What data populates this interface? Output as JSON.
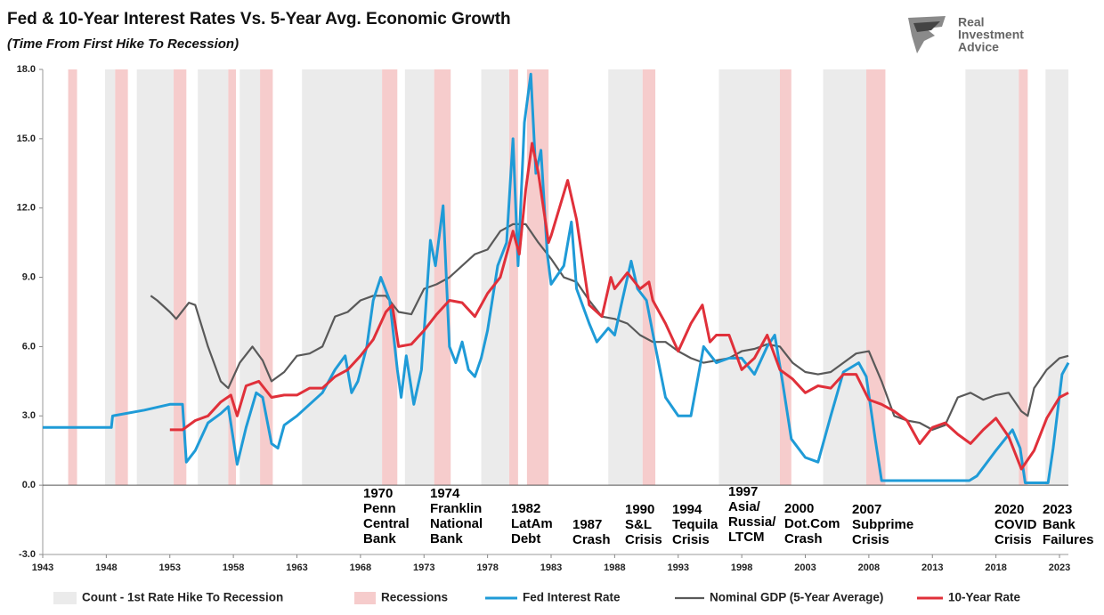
{
  "chart_data": {
    "type": "line",
    "title": "Fed & 10-Year Interest Rates Vs. 5-Year Avg. Economic Growth",
    "subtitle": "(Time From First Hike To Recession)",
    "logo": [
      "Real",
      "Investment",
      "Advice"
    ],
    "xlim": [
      1943,
      2023.7
    ],
    "xticks": [
      1943,
      1948,
      1953,
      1958,
      1963,
      1968,
      1973,
      1978,
      1983,
      1988,
      1993,
      1998,
      2003,
      2008,
      2013,
      2018,
      2023
    ],
    "ylim": [
      -3,
      18
    ],
    "yticks": [
      {
        "value": 18,
        "label": "18.0"
      },
      {
        "value": 15,
        "label": "15.0"
      },
      {
        "value": 12,
        "label": "12.0"
      },
      {
        "value": 9,
        "label": "9.0"
      },
      {
        "value": 6,
        "label": "6.0"
      },
      {
        "value": 3,
        "label": "3.0"
      },
      {
        "value": 0,
        "label": "0.0"
      },
      {
        "value": -3,
        "label": "-3.0"
      }
    ],
    "grid": false,
    "bands": [
      {
        "name": "Count - 1st Rate Hike To Recession",
        "color": "#ebebeb",
        "ranges": [
          [
            1947.9,
            1948.7
          ],
          [
            1950.4,
            1953.3
          ],
          [
            1955.2,
            1957.6
          ],
          [
            1958.5,
            1960.1
          ],
          [
            1963.4,
            1969.7
          ],
          [
            1971.5,
            1973.8
          ],
          [
            1977.5,
            1979.7
          ],
          [
            1987.5,
            1990.2
          ],
          [
            1996.2,
            2001.0
          ],
          [
            2004.4,
            2007.8
          ],
          [
            2015.6,
            2019.8
          ],
          [
            2021.9,
            2023.7
          ]
        ]
      },
      {
        "name": "Recessions",
        "color": "#f6cccc",
        "ranges": [
          [
            1945.0,
            1945.7
          ],
          [
            1948.7,
            1949.7
          ],
          [
            1953.3,
            1954.3
          ],
          [
            1957.6,
            1958.2
          ],
          [
            1960.1,
            1961.1
          ],
          [
            1969.7,
            1970.9
          ],
          [
            1973.8,
            1975.1
          ],
          [
            1979.7,
            1980.4
          ],
          [
            1981.1,
            1982.8
          ],
          [
            1990.2,
            1991.2
          ],
          [
            2001.0,
            2001.9
          ],
          [
            2007.8,
            2009.3
          ],
          [
            2019.8,
            2020.5
          ]
        ]
      }
    ],
    "series": [
      {
        "name": "Fed Interest Rate",
        "color": "#1f9bd7",
        "x": [
          1943,
          1948.4,
          1948.5,
          1951,
          1953,
          1954,
          1954.3,
          1955,
          1956,
          1957,
          1957.6,
          1958.3,
          1959,
          1959.8,
          1960.3,
          1961,
          1961.5,
          1962,
          1963,
          1964,
          1965,
          1966,
          1966.8,
          1967.3,
          1967.8,
          1968.5,
          1969,
          1969.6,
          1970.3,
          1970.9,
          1971.2,
          1971.6,
          1972.2,
          1972.8,
          1973.5,
          1973.9,
          1974.5,
          1975,
          1975.5,
          1976,
          1976.5,
          1977,
          1977.5,
          1978,
          1978.8,
          1979.5,
          1980.0,
          1980.4,
          1980.9,
          1981.4,
          1981.8,
          1982.2,
          1982.7,
          1983,
          1984,
          1984.6,
          1985,
          1986,
          1986.6,
          1987.5,
          1988,
          1988.6,
          1989.3,
          1989.8,
          1990.5,
          1991.2,
          1992,
          1993,
          1994,
          1995,
          1996,
          1997,
          1998,
          1999,
          2000,
          2000.6,
          2001.2,
          2001.9,
          2003,
          2004,
          2005,
          2006,
          2007.2,
          2007.8,
          2008.5,
          2009,
          2015.9,
          2016.5,
          2018,
          2019.3,
          2019.9,
          2020.3,
          2022.1,
          2022.5,
          2023.2,
          2023.7
        ],
        "values": [
          2.5,
          2.5,
          3.0,
          3.25,
          3.5,
          3.5,
          1.0,
          1.5,
          2.7,
          3.1,
          3.4,
          0.9,
          2.5,
          4.0,
          3.8,
          1.8,
          1.6,
          2.6,
          3.0,
          3.5,
          4.0,
          5.0,
          5.6,
          4.0,
          4.5,
          6.0,
          8.0,
          9.0,
          8.0,
          5.0,
          3.8,
          5.6,
          3.5,
          5.0,
          10.6,
          9.5,
          12.1,
          6.0,
          5.3,
          6.2,
          5.0,
          4.7,
          5.5,
          6.7,
          9.5,
          10.5,
          15.0,
          9.5,
          15.7,
          17.8,
          13.5,
          14.5,
          10.0,
          8.7,
          9.5,
          11.4,
          8.5,
          7.0,
          6.2,
          6.8,
          6.5,
          8.0,
          9.7,
          8.5,
          8.0,
          6.0,
          3.8,
          3.0,
          3.0,
          6.0,
          5.3,
          5.5,
          5.5,
          4.8,
          6.0,
          6.5,
          4.5,
          2.0,
          1.2,
          1.0,
          3.0,
          4.9,
          5.3,
          4.7,
          2.0,
          0.2,
          0.2,
          0.4,
          1.5,
          2.4,
          1.6,
          0.1,
          0.1,
          1.6,
          4.8,
          5.3
        ]
      },
      {
        "name": "Nominal GDP (5-Year Average)",
        "color": "#595959",
        "x": [
          1951.5,
          1952,
          1953,
          1953.5,
          1954.5,
          1955,
          1956,
          1957,
          1957.6,
          1958.5,
          1959.5,
          1960.3,
          1961,
          1962,
          1963,
          1964,
          1965,
          1966,
          1967,
          1968,
          1969,
          1970,
          1971,
          1972,
          1973,
          1974,
          1975,
          1976,
          1977,
          1978,
          1979,
          1980,
          1981,
          1982,
          1983,
          1984,
          1985,
          1986,
          1987,
          1988,
          1989,
          1990,
          1991,
          1992,
          1993,
          1994,
          1995,
          1996,
          1997,
          1998,
          1999,
          2000,
          2001,
          2002,
          2003,
          2004,
          2005,
          2006,
          2007,
          2008,
          2009,
          2010,
          2011,
          2012,
          2013,
          2014,
          2015,
          2016,
          2017,
          2018,
          2019,
          2020,
          2020.5,
          2021,
          2022,
          2023,
          2023.7
        ],
        "values": [
          8.2,
          8.0,
          7.5,
          7.2,
          7.9,
          7.8,
          6.0,
          4.5,
          4.2,
          5.3,
          6.0,
          5.4,
          4.5,
          4.9,
          5.6,
          5.7,
          6.0,
          7.3,
          7.5,
          8.0,
          8.2,
          8.2,
          7.5,
          7.4,
          8.5,
          8.7,
          9.0,
          9.5,
          10.0,
          10.2,
          11.0,
          11.3,
          11.3,
          10.5,
          9.8,
          9.0,
          8.8,
          8.0,
          7.3,
          7.2,
          7.0,
          6.5,
          6.2,
          6.2,
          5.8,
          5.5,
          5.3,
          5.4,
          5.5,
          5.8,
          5.9,
          6.1,
          6.0,
          5.3,
          4.9,
          4.8,
          4.9,
          5.3,
          5.7,
          5.8,
          4.5,
          3.0,
          2.8,
          2.7,
          2.4,
          2.6,
          3.8,
          4.0,
          3.7,
          3.9,
          4.0,
          3.2,
          3.0,
          4.2,
          5.0,
          5.5,
          5.6
        ]
      },
      {
        "name": "10-Year Rate",
        "color": "#e0303a",
        "x": [
          1953,
          1954,
          1955,
          1956,
          1957,
          1957.8,
          1958.3,
          1959,
          1960,
          1961,
          1962,
          1963,
          1964,
          1965,
          1966,
          1967,
          1968,
          1969,
          1970,
          1970.5,
          1971,
          1972,
          1973,
          1974,
          1975,
          1976,
          1977,
          1978,
          1979,
          1980,
          1980.5,
          1981,
          1981.5,
          1982,
          1982.8,
          1983,
          1984.3,
          1985,
          1986,
          1987,
          1987.7,
          1988,
          1989,
          1990,
          1990.7,
          1991,
          1992,
          1993,
          1994,
          1994.9,
          1995.5,
          1996,
          1997,
          1998,
          1999,
          2000,
          2001,
          2002,
          2003,
          2004,
          2005,
          2006,
          2007,
          2008,
          2009,
          2010,
          2011,
          2012,
          2013,
          2014,
          2015,
          2016,
          2017,
          2018,
          2019,
          2020,
          2021,
          2022,
          2023,
          2023.7
        ],
        "values": [
          2.4,
          2.4,
          2.8,
          3.0,
          3.6,
          3.9,
          3.0,
          4.3,
          4.5,
          3.8,
          3.9,
          3.9,
          4.2,
          4.2,
          4.7,
          5.0,
          5.6,
          6.3,
          7.5,
          7.8,
          6.0,
          6.1,
          6.7,
          7.4,
          8.0,
          7.9,
          7.3,
          8.3,
          9.0,
          11.0,
          10.0,
          12.8,
          14.8,
          13.5,
          10.5,
          10.8,
          13.2,
          11.5,
          7.8,
          7.3,
          9.0,
          8.5,
          9.2,
          8.5,
          8.8,
          8.0,
          7.0,
          5.8,
          7.0,
          7.8,
          6.2,
          6.5,
          6.5,
          5.0,
          5.5,
          6.5,
          5.0,
          4.6,
          4.0,
          4.3,
          4.2,
          4.8,
          4.8,
          3.7,
          3.5,
          3.2,
          2.8,
          1.8,
          2.5,
          2.7,
          2.2,
          1.8,
          2.4,
          2.9,
          2.1,
          0.7,
          1.5,
          2.9,
          3.8,
          4.0
        ]
      }
    ],
    "annotations": [
      {
        "lines": [
          "1970",
          "Penn",
          "Central",
          "Bank"
        ]
      },
      {
        "lines": [
          "1974",
          "Franklin",
          "National",
          "Bank"
        ]
      },
      {
        "lines": [
          "1982",
          "LatAm",
          "Debt"
        ]
      },
      {
        "lines": [
          "1987",
          "Crash"
        ]
      },
      {
        "lines": [
          "1990",
          "S&L",
          "Crisis"
        ]
      },
      {
        "lines": [
          "1994",
          "Tequila",
          "Crisis"
        ]
      },
      {
        "lines": [
          "1997",
          "Asia/",
          "Russia/",
          "LTCM"
        ]
      },
      {
        "lines": [
          "2000",
          "Dot.Com",
          "Crash"
        ]
      },
      {
        "lines": [
          "2007",
          "Subprime",
          "Crisis"
        ]
      },
      {
        "lines": [
          "2020",
          "COVID",
          "Crisis"
        ]
      },
      {
        "lines": [
          "2023",
          "Bank",
          "Failures"
        ]
      }
    ]
  }
}
